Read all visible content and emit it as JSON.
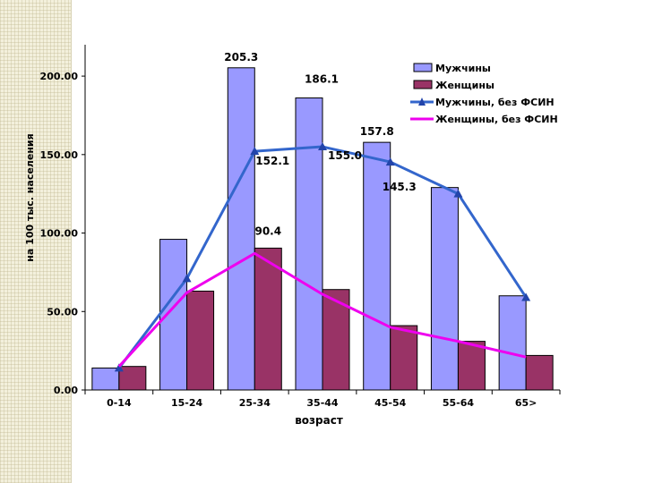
{
  "chart_data": {
    "type": "bar",
    "categories": [
      "0-14",
      "15-24",
      "25-34",
      "35-44",
      "45-54",
      "55-64",
      "65>"
    ],
    "xlabel": "возраст",
    "ylabel": "на 100 тыс. населения",
    "ylim": [
      0,
      220
    ],
    "yticks": [
      "0.00",
      "50.00",
      "100.00",
      "150.00",
      "200.00"
    ],
    "ytick_values": [
      0,
      50,
      100,
      150,
      200
    ],
    "legend_position": "top-right",
    "series": [
      {
        "name": "Мужчины",
        "type": "bar",
        "color": "#9999ff",
        "values": [
          14,
          96,
          205.3,
          186.1,
          157.8,
          129,
          60
        ]
      },
      {
        "name": "Женщины",
        "type": "bar",
        "color": "#993366",
        "values": [
          15,
          63,
          90.4,
          64,
          41,
          31,
          22
        ]
      },
      {
        "name": "Мужчины, без ФСИН",
        "type": "line",
        "color": "#3366cc",
        "values": [
          14,
          71,
          152.1,
          155.0,
          145.3,
          125,
          59
        ]
      },
      {
        "name": "Женщины, без ФСИН",
        "type": "line",
        "color": "#ee00ee",
        "values": [
          15,
          62,
          87,
          61,
          40,
          31,
          21
        ]
      }
    ],
    "data_labels": [
      {
        "text": "205.3",
        "series": 0,
        "index": 2
      },
      {
        "text": "186.1",
        "series": 0,
        "index": 3
      },
      {
        "text": "157.8",
        "series": 0,
        "index": 4
      },
      {
        "text": "90.4",
        "series": 1,
        "index": 2
      },
      {
        "text": "152.1",
        "series": 2,
        "index": 2
      },
      {
        "text": "155.0",
        "series": 2,
        "index": 3
      },
      {
        "text": "145.3",
        "series": 2,
        "index": 4
      }
    ]
  }
}
